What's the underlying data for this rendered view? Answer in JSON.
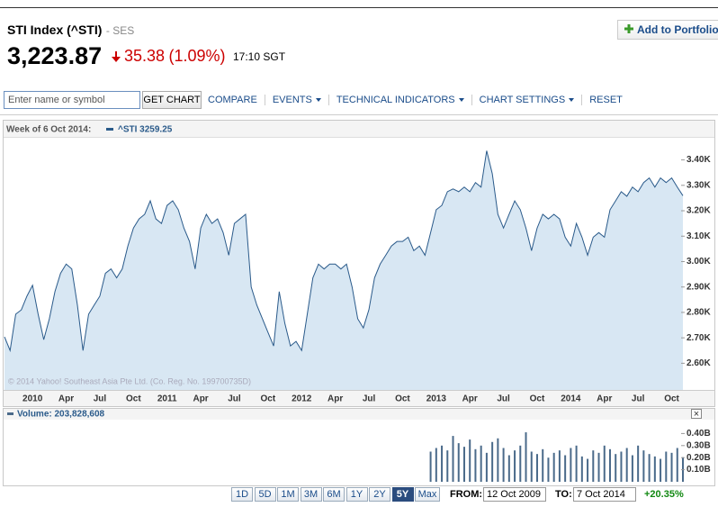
{
  "header": {
    "title": "STI Index (^STI)",
    "exchange": "- SES",
    "add_button": "Add to Portfolio",
    "price": "3,223.87",
    "change": "35.38",
    "change_percent": "(1.09%)",
    "time": "17:10 SGT"
  },
  "toolbar": {
    "search_placeholder": "Enter name or symbol",
    "get_chart": "GET CHART",
    "menu": [
      "COMPARE",
      "EVENTS",
      "TECHNICAL INDICATORS",
      "CHART SETTINGS",
      "RESET"
    ],
    "dropdown": [
      false,
      true,
      true,
      true,
      false
    ]
  },
  "chart_data": [
    {
      "type": "area",
      "legend_title": "Week of 6 Oct 2014:",
      "copyright": "© 2014 Yahoo! Southeast Asia Pte Ltd. (Co. Reg. No. 199700735D)",
      "categories": [
        null,
        null,
        null,
        null,
        null,
        "2010",
        null,
        null,
        null,
        null,
        null,
        "Apr",
        null,
        null,
        null,
        null,
        null,
        "Jul",
        null,
        null,
        null,
        null,
        null,
        "Oct",
        null,
        null,
        null,
        null,
        null,
        "2011",
        null,
        null,
        null,
        null,
        null,
        "Apr",
        null,
        null,
        null,
        null,
        null,
        "Jul",
        null,
        null,
        null,
        null,
        null,
        "Oct",
        null,
        null,
        null,
        null,
        null,
        "2012",
        null,
        null,
        null,
        null,
        null,
        "Apr",
        null,
        null,
        null,
        null,
        null,
        "Jul",
        null,
        null,
        null,
        null,
        null,
        "Oct",
        null,
        null,
        null,
        null,
        null,
        "2013",
        null,
        null,
        null,
        null,
        null,
        "Apr",
        null,
        null,
        null,
        null,
        null,
        "Jul",
        null,
        null,
        null,
        null,
        null,
        "Oct",
        null,
        null,
        null,
        null,
        null,
        "2014",
        null,
        null,
        null,
        null,
        null,
        "Apr",
        null,
        null,
        null,
        null,
        null,
        "Jul",
        null,
        null,
        null,
        null,
        null,
        "Oct",
        null,
        null
      ],
      "series": [
        {
          "name": "^STI 3259.25",
          "color": "#2a5a8a",
          "fill": "#d8e7f3",
          "values": [
            2704,
            2650,
            2793,
            2810,
            2864,
            2907,
            2793,
            2693,
            2775,
            2882,
            2954,
            2990,
            2971,
            2829,
            2650,
            2793,
            2829,
            2864,
            2954,
            2971,
            2936,
            2971,
            3061,
            3132,
            3168,
            3186,
            3239,
            3168,
            3150,
            3221,
            3239,
            3204,
            3132,
            3079,
            2971,
            3132,
            3186,
            3150,
            3168,
            3114,
            3025,
            3150,
            3168,
            3186,
            2900,
            2829,
            2775,
            2721,
            2668,
            2882,
            2757,
            2668,
            2686,
            2650,
            2793,
            2936,
            2990,
            2971,
            2990,
            2990,
            2971,
            2990,
            2900,
            2775,
            2739,
            2811,
            2936,
            2990,
            3025,
            3061,
            3079,
            3079,
            3096,
            3043,
            3061,
            3025,
            3114,
            3204,
            3221,
            3275,
            3286,
            3275,
            3293,
            3275,
            3311,
            3293,
            3436,
            3346,
            3186,
            3132,
            3186,
            3239,
            3204,
            3132,
            3043,
            3132,
            3186,
            3168,
            3186,
            3168,
            3096,
            3061,
            3150,
            3096,
            3025,
            3096,
            3114,
            3096,
            3204,
            3239,
            3275,
            3257,
            3293,
            3275,
            3311,
            3329,
            3293,
            3329,
            3311,
            3329,
            3293,
            3259.25
          ]
        }
      ],
      "ylim": [
        2495,
        3480
      ],
      "yticks": [
        {
          "value": 2600,
          "label": "2.60K"
        },
        {
          "value": 2700,
          "label": "2.70K"
        },
        {
          "value": 2800,
          "label": "2.80K"
        },
        {
          "value": 2900,
          "label": "2.90K"
        },
        {
          "value": 3000,
          "label": "3.00K"
        },
        {
          "value": 3100,
          "label": "3.10K"
        },
        {
          "value": 3200,
          "label": "3.20K"
        },
        {
          "value": 3300,
          "label": "3.30K"
        },
        {
          "value": 3400,
          "label": "3.40K"
        }
      ]
    },
    {
      "type": "bar",
      "close_button": "×",
      "series": [
        {
          "name": "Volume: 203,828,608",
          "color": "#4a6a8a",
          "values": [
            null,
            null,
            null,
            null,
            null,
            null,
            null,
            null,
            null,
            null,
            null,
            null,
            null,
            null,
            null,
            null,
            null,
            null,
            null,
            null,
            null,
            null,
            null,
            null,
            null,
            null,
            null,
            null,
            null,
            null,
            null,
            null,
            null,
            null,
            null,
            null,
            null,
            null,
            null,
            null,
            null,
            null,
            null,
            null,
            null,
            null,
            null,
            null,
            null,
            null,
            null,
            null,
            null,
            null,
            null,
            null,
            null,
            null,
            null,
            null,
            null,
            null,
            null,
            null,
            null,
            null,
            null,
            null,
            null,
            null,
            null,
            null,
            null,
            null,
            null,
            null,
            250000000,
            280000000,
            300000000,
            260000000,
            380000000,
            320000000,
            290000000,
            350000000,
            270000000,
            300000000,
            240000000,
            330000000,
            360000000,
            280000000,
            220000000,
            260000000,
            300000000,
            410000000,
            250000000,
            230000000,
            270000000,
            200000000,
            240000000,
            260000000,
            220000000,
            280000000,
            300000000,
            210000000,
            190000000,
            260000000,
            240000000,
            300000000,
            270000000,
            230000000,
            250000000,
            280000000,
            220000000,
            300000000,
            260000000,
            230000000,
            210000000,
            190000000,
            250000000,
            240000000,
            280000000,
            203828608
          ]
        }
      ],
      "ylim": [
        0,
        500000000
      ],
      "yticks": [
        {
          "value": 100000000,
          "label": "0.10B"
        },
        {
          "value": 200000000,
          "label": "0.20B"
        },
        {
          "value": 300000000,
          "label": "0.30B"
        },
        {
          "value": 400000000,
          "label": "0.40B"
        }
      ]
    }
  ],
  "footer": {
    "ranges": [
      "1D",
      "5D",
      "1M",
      "3M",
      "6M",
      "1Y",
      "2Y",
      "5Y",
      "Max"
    ],
    "selected_range": 7,
    "from_label": "FROM:",
    "from_date": "12 Oct 2009",
    "to_label": "TO:",
    "to_date": "7 Oct 2014",
    "period_change": "+20.35%"
  }
}
